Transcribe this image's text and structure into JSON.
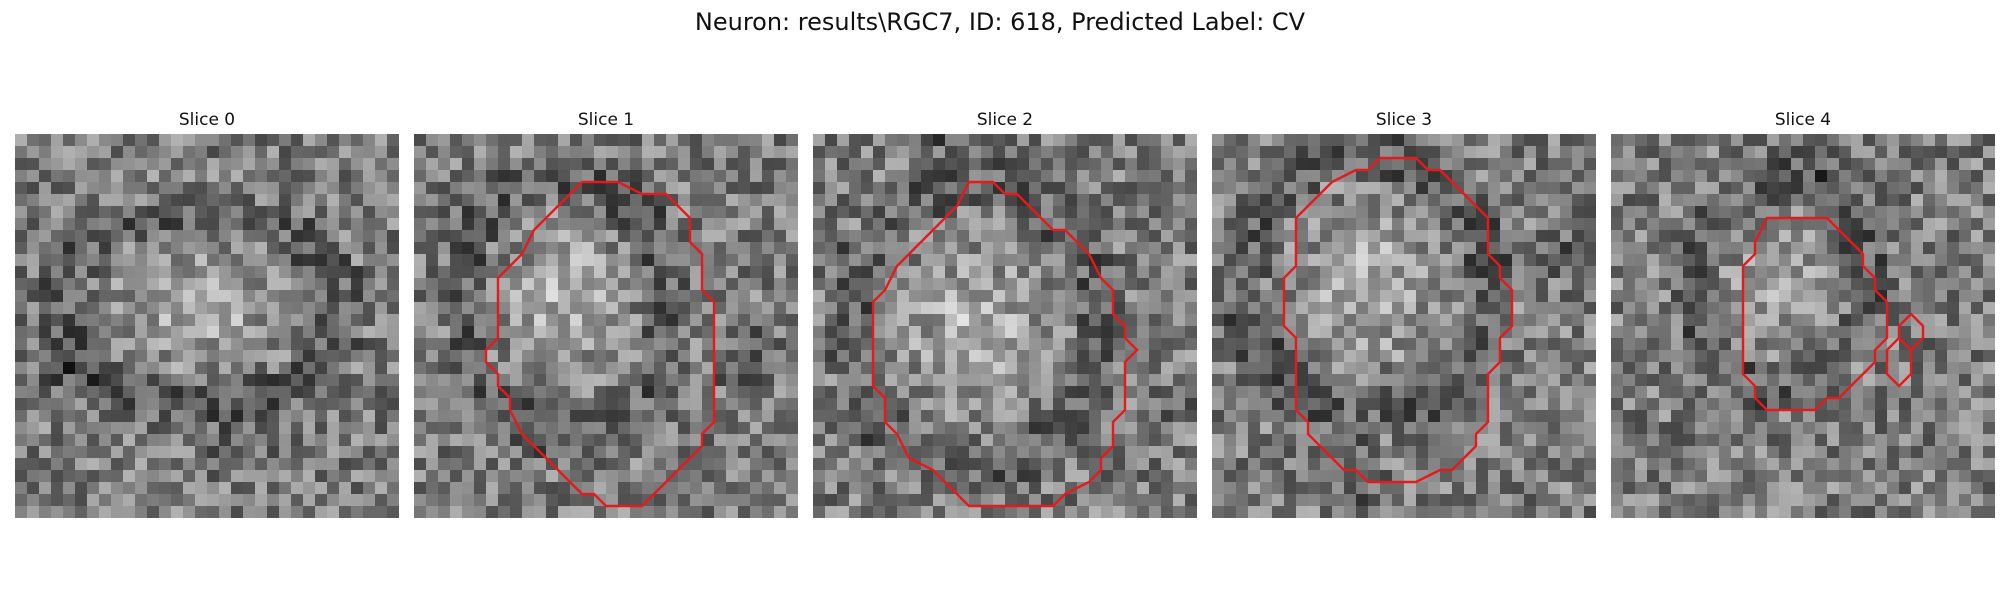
{
  "figure": {
    "title": "Neuron: results\\RGC7, ID: 618, Predicted Label: CV"
  },
  "slices": [
    {
      "label": "Slice 0",
      "grid_cells": 32,
      "has_contour": false,
      "contours": []
    },
    {
      "label": "Slice 1",
      "grid_cells": 32,
      "has_contour": true,
      "contours": [
        [
          [
            14,
            4
          ],
          [
            17,
            4
          ],
          [
            19,
            5
          ],
          [
            21,
            5
          ],
          [
            22,
            6
          ],
          [
            23,
            7
          ],
          [
            23,
            9
          ],
          [
            24,
            10
          ],
          [
            24,
            13
          ],
          [
            25,
            14
          ],
          [
            25,
            24
          ],
          [
            24,
            25
          ],
          [
            24,
            26
          ],
          [
            23,
            27
          ],
          [
            22,
            28
          ],
          [
            20,
            30
          ],
          [
            19,
            31
          ],
          [
            16,
            31
          ],
          [
            15,
            30
          ],
          [
            14,
            30
          ],
          [
            13,
            29
          ],
          [
            12,
            28
          ],
          [
            11,
            27
          ],
          [
            10,
            26
          ],
          [
            9,
            25
          ],
          [
            8,
            23
          ],
          [
            8,
            22
          ],
          [
            7,
            21
          ],
          [
            7,
            20
          ],
          [
            6,
            19
          ],
          [
            6,
            18
          ],
          [
            7,
            17
          ],
          [
            7,
            12
          ],
          [
            8,
            11
          ],
          [
            9,
            10
          ],
          [
            10,
            8
          ],
          [
            12,
            6
          ],
          [
            13,
            5
          ]
        ]
      ]
    },
    {
      "label": "Slice 2",
      "grid_cells": 32,
      "has_contour": true,
      "contours": [
        [
          [
            13,
            4
          ],
          [
            15,
            4
          ],
          [
            16,
            5
          ],
          [
            17,
            5
          ],
          [
            18,
            6
          ],
          [
            19,
            7
          ],
          [
            20,
            8
          ],
          [
            21,
            8
          ],
          [
            22,
            9
          ],
          [
            23,
            10
          ],
          [
            24,
            12
          ],
          [
            25,
            13
          ],
          [
            25,
            15
          ],
          [
            26,
            16
          ],
          [
            26,
            17
          ],
          [
            27,
            18
          ],
          [
            26,
            19
          ],
          [
            26,
            23
          ],
          [
            25,
            24
          ],
          [
            25,
            26
          ],
          [
            24,
            27
          ],
          [
            24,
            28
          ],
          [
            23,
            29
          ],
          [
            21,
            30
          ],
          [
            20,
            31
          ],
          [
            13,
            31
          ],
          [
            12,
            30
          ],
          [
            11,
            29
          ],
          [
            10,
            28
          ],
          [
            8,
            27
          ],
          [
            7,
            25
          ],
          [
            6,
            24
          ],
          [
            6,
            22
          ],
          [
            5,
            21
          ],
          [
            5,
            14
          ],
          [
            6,
            13
          ],
          [
            7,
            11
          ],
          [
            8,
            10
          ],
          [
            9,
            9
          ],
          [
            10,
            8
          ],
          [
            11,
            7
          ],
          [
            12,
            6
          ]
        ]
      ]
    },
    {
      "label": "Slice 3",
      "grid_cells": 32,
      "has_contour": true,
      "contours": [
        [
          [
            14,
            2
          ],
          [
            17,
            2
          ],
          [
            18,
            3
          ],
          [
            19,
            3
          ],
          [
            20,
            4
          ],
          [
            21,
            5
          ],
          [
            22,
            6
          ],
          [
            23,
            7
          ],
          [
            23,
            10
          ],
          [
            24,
            11
          ],
          [
            24,
            12
          ],
          [
            25,
            13
          ],
          [
            25,
            16
          ],
          [
            24,
            17
          ],
          [
            24,
            19
          ],
          [
            23,
            20
          ],
          [
            23,
            24
          ],
          [
            22,
            25
          ],
          [
            22,
            26
          ],
          [
            21,
            27
          ],
          [
            20,
            28
          ],
          [
            19,
            28
          ],
          [
            17,
            29
          ],
          [
            14,
            29
          ],
          [
            13,
            29
          ],
          [
            12,
            28
          ],
          [
            11,
            28
          ],
          [
            10,
            27
          ],
          [
            9,
            26
          ],
          [
            8,
            25
          ],
          [
            8,
            24
          ],
          [
            7,
            23
          ],
          [
            7,
            17
          ],
          [
            6,
            16
          ],
          [
            6,
            12
          ],
          [
            7,
            11
          ],
          [
            7,
            7
          ],
          [
            8,
            6
          ],
          [
            9,
            5
          ],
          [
            10,
            4
          ],
          [
            12,
            3
          ],
          [
            13,
            3
          ]
        ]
      ]
    },
    {
      "label": "Slice 4",
      "grid_cells": 32,
      "has_contour": true,
      "contours": [
        [
          [
            13,
            7
          ],
          [
            18,
            7
          ],
          [
            19,
            8
          ],
          [
            20,
            9
          ],
          [
            21,
            10
          ],
          [
            21,
            11
          ],
          [
            22,
            12
          ],
          [
            22,
            13
          ],
          [
            23,
            14
          ],
          [
            23,
            17
          ],
          [
            22,
            18
          ],
          [
            22,
            19
          ],
          [
            21,
            20
          ],
          [
            20,
            21
          ],
          [
            19,
            22
          ],
          [
            18,
            22
          ],
          [
            17,
            23
          ],
          [
            13,
            23
          ],
          [
            12,
            22
          ],
          [
            12,
            21
          ],
          [
            11,
            20
          ],
          [
            11,
            19
          ],
          [
            11,
            11
          ],
          [
            12,
            10
          ],
          [
            12,
            9
          ]
        ],
        [
          [
            25,
            15
          ],
          [
            26,
            16
          ],
          [
            26,
            17
          ],
          [
            25,
            18
          ],
          [
            24,
            17
          ],
          [
            24,
            16
          ]
        ],
        [
          [
            24,
            17
          ],
          [
            25,
            18
          ],
          [
            25,
            20
          ],
          [
            24,
            21
          ],
          [
            23,
            20
          ],
          [
            23,
            18
          ]
        ]
      ]
    }
  ]
}
